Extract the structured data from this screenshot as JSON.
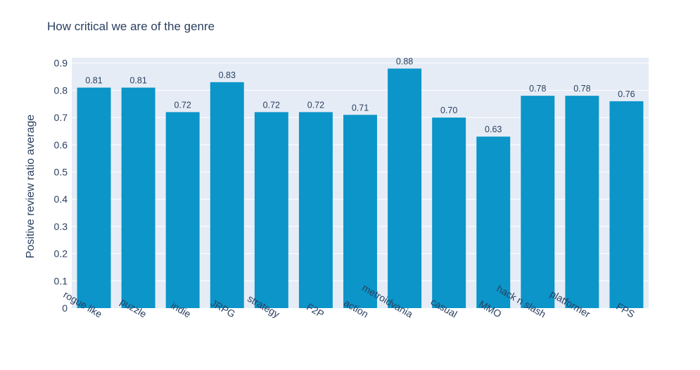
{
  "chart_data": {
    "type": "bar",
    "title": "How critical we are of the genre",
    "xlabel": "",
    "ylabel": "Positive review ratio average",
    "categories": [
      "rogue like",
      "puzzle",
      "indie",
      "JRPG",
      "strategy",
      "F2P",
      "action",
      "metroidvania",
      "casual",
      "MMO",
      "hack n slash",
      "platformer",
      "FPS"
    ],
    "values": [
      0.81,
      0.81,
      0.72,
      0.83,
      0.72,
      0.72,
      0.71,
      0.88,
      0.7,
      0.63,
      0.78,
      0.78,
      0.76
    ],
    "value_labels": [
      "0.81",
      "0.81",
      "0.72",
      "0.83",
      "0.72",
      "0.72",
      "0.71",
      "0.88",
      "0.70",
      "0.63",
      "0.78",
      "0.78",
      "0.76"
    ],
    "yticks": [
      "0",
      "0.1",
      "0.2",
      "0.3",
      "0.4",
      "0.5",
      "0.6",
      "0.7",
      "0.8",
      "0.9"
    ],
    "ylim": [
      0,
      0.92
    ],
    "grid": true,
    "legend": "none",
    "colors": {
      "bar": "#0b95c9",
      "plot_bg": "#e5ecf6",
      "grid": "#ffffff",
      "text": "#2a3f5f"
    }
  }
}
